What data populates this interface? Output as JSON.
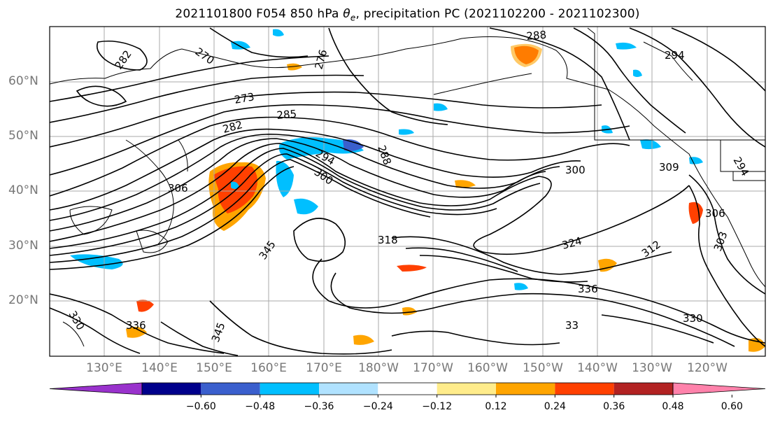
{
  "title_main": "2021101800 F054 850 hPa",
  "title_var": "θ",
  "title_sub": "e",
  "title_tail": ", precipitation PC (2021102200 - 2021102300)",
  "lat_labels": [
    "60°N",
    "50°N",
    "40°N",
    "30°N",
    "20°N"
  ],
  "lon_labels": [
    "130°E",
    "140°E",
    "150°E",
    "160°E",
    "170°E",
    "180°W",
    "170°W",
    "160°W",
    "150°W",
    "140°W",
    "130°W",
    "120°W"
  ],
  "contour_labels": [
    "288",
    "270",
    "276",
    "282",
    "273",
    "285",
    "282",
    "288",
    "294",
    "300",
    "300",
    "309",
    "306",
    "306",
    "303",
    "318",
    "324",
    "330",
    "336",
    "345",
    "345",
    "330",
    "336",
    "33",
    "312",
    "294",
    "294"
  ],
  "colorbar": {
    "ticks": [
      "−0.60",
      "−0.48",
      "−0.36",
      "−0.24",
      "−0.12",
      "0.12",
      "0.24",
      "0.36",
      "0.48",
      "0.60"
    ],
    "colors": [
      "#9932cc",
      "#00008b",
      "#3a5fcd",
      "#00bfff",
      "#b0e2ff",
      "#ffffff",
      "#ffec8b",
      "#ffa500",
      "#ff4000",
      "#b22222",
      "#ff82ab"
    ]
  }
}
